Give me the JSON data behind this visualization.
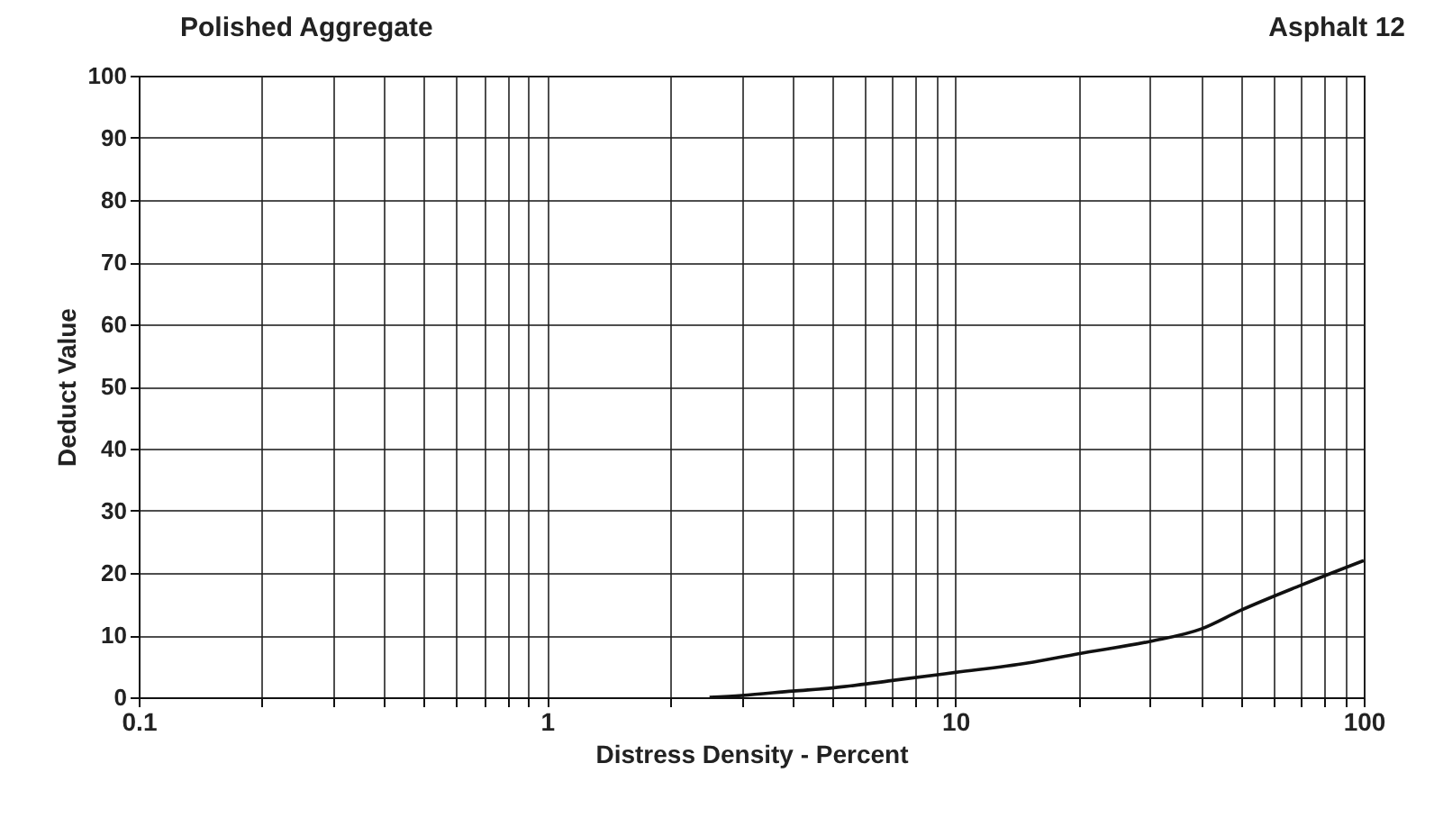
{
  "chart_data": {
    "type": "line",
    "title": "Polished Aggregate",
    "annotations": [
      "Asphalt 12"
    ],
    "xlabel": "Distress Density - Percent",
    "ylabel": "Deduct Value",
    "log": "x",
    "grid": true,
    "x": [
      2.5,
      3,
      4,
      5,
      7,
      10,
      15,
      20,
      30,
      40,
      50,
      70,
      100
    ],
    "series": [
      {
        "color": "#111111",
        "values": [
          0,
          0.3,
          1,
          1.5,
          2.7,
          4,
          5.5,
          7,
          9,
          11,
          14,
          18,
          22
        ]
      }
    ],
    "xlim": [
      0.1,
      100
    ],
    "ylim": [
      0,
      100
    ],
    "xticks": [
      0.1,
      {
        "value": 0.2,
        "label": null
      },
      {
        "value": 0.3,
        "label": null
      },
      {
        "value": 0.4,
        "label": null
      },
      {
        "value": 0.5,
        "label": null
      },
      {
        "value": 0.6,
        "label": null
      },
      {
        "value": 0.7,
        "label": null
      },
      {
        "value": 0.8,
        "label": null
      },
      {
        "value": 0.9,
        "label": null
      },
      1,
      {
        "value": 2,
        "label": null
      },
      {
        "value": 3,
        "label": null
      },
      {
        "value": 4,
        "label": null
      },
      {
        "value": 5,
        "label": null
      },
      {
        "value": 6,
        "label": null
      },
      {
        "value": 7,
        "label": null
      },
      {
        "value": 8,
        "label": null
      },
      {
        "value": 9,
        "label": null
      },
      10,
      {
        "value": 20,
        "label": null
      },
      {
        "value": 30,
        "label": null
      },
      {
        "value": 40,
        "label": null
      },
      {
        "value": 50,
        "label": null
      },
      {
        "value": 60,
        "label": null
      },
      {
        "value": 70,
        "label": null
      },
      {
        "value": 80,
        "label": null
      },
      {
        "value": 90,
        "label": null
      },
      100
    ],
    "yticks": [
      0,
      10,
      20,
      30,
      40,
      50,
      60,
      70,
      80,
      90,
      100
    ]
  }
}
